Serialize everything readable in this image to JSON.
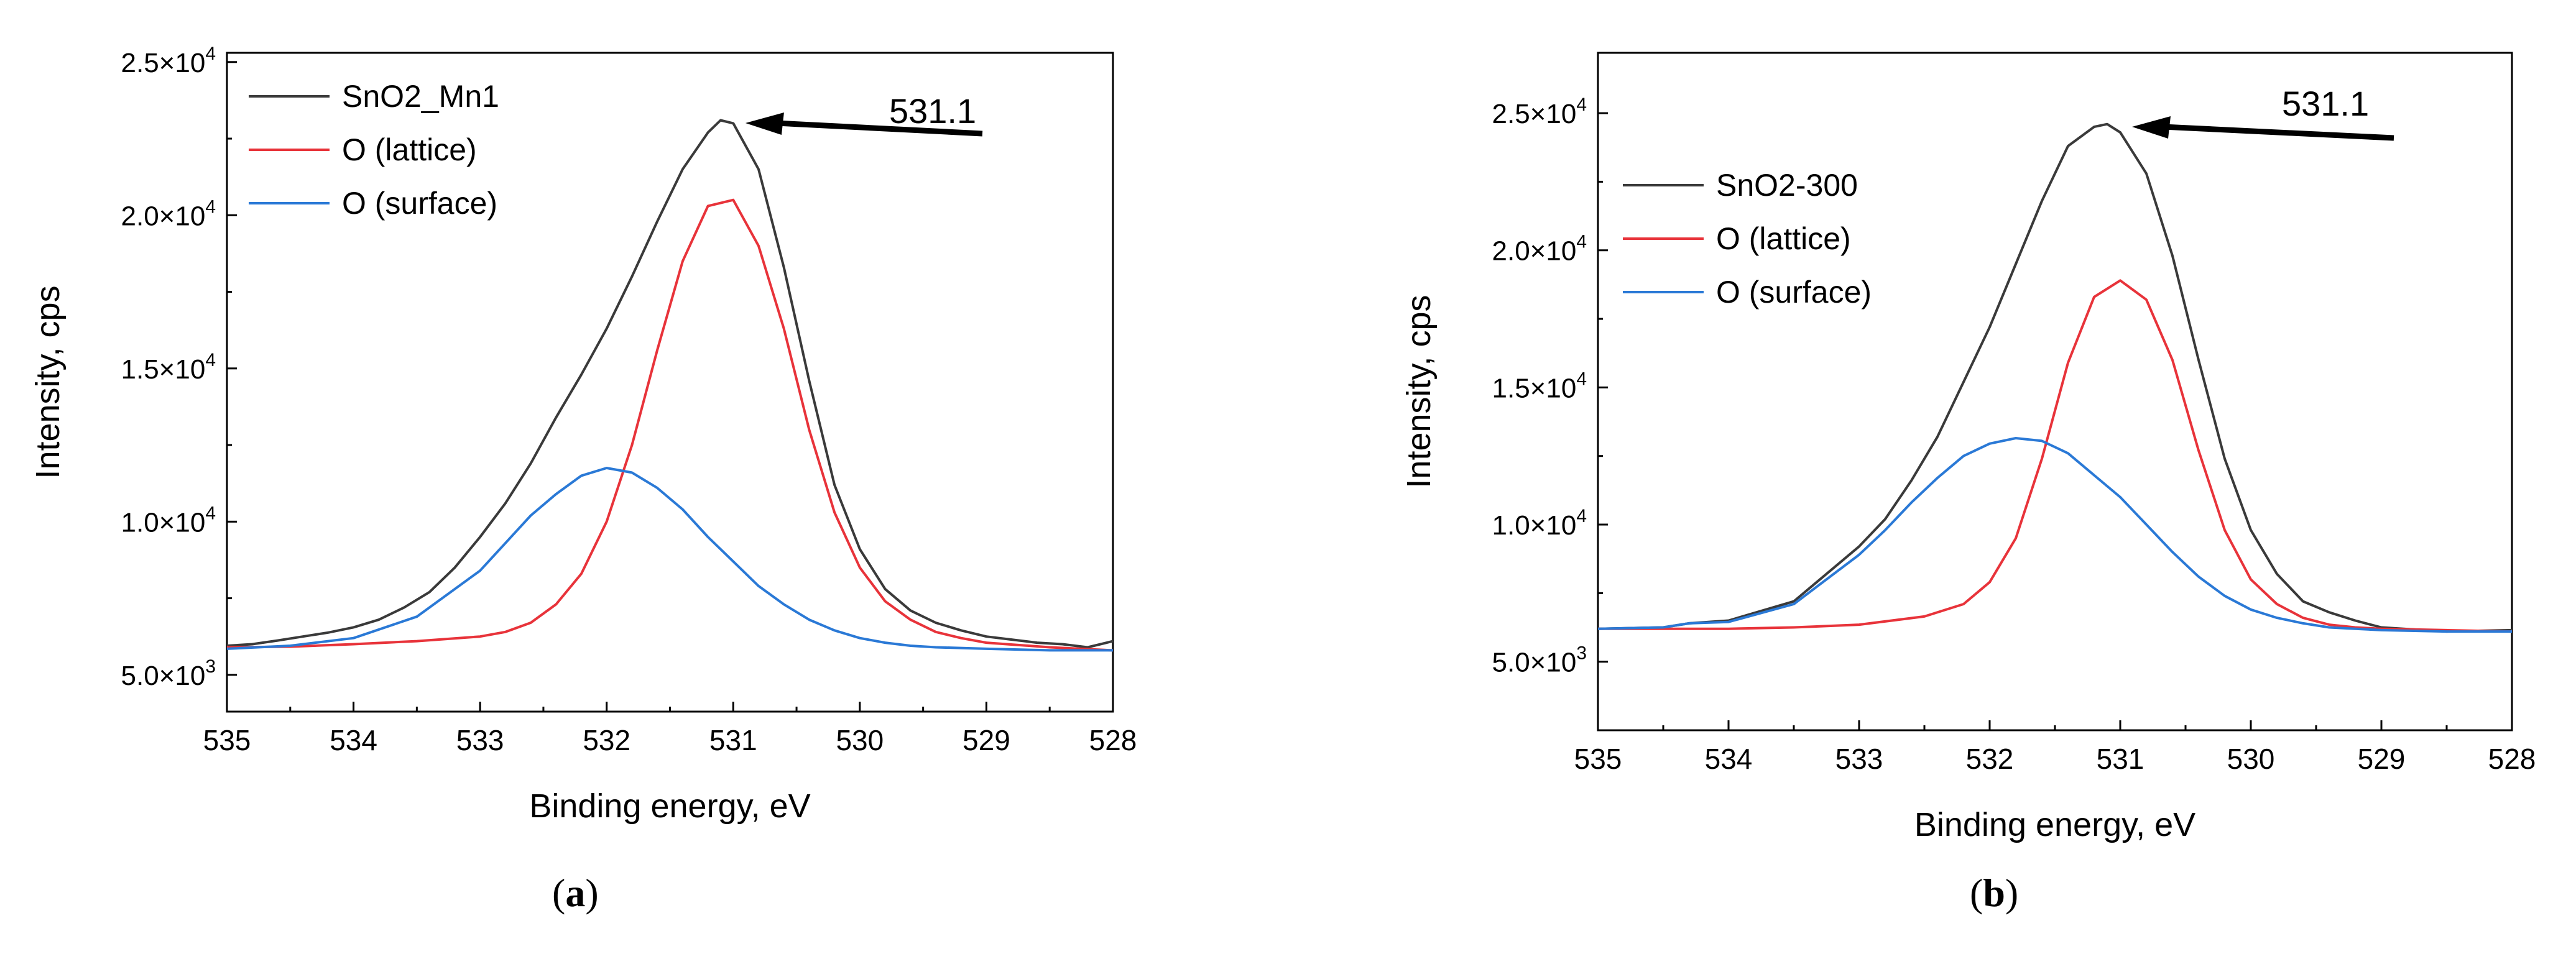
{
  "chart_data": [
    {
      "type": "line",
      "caption_letter": "a",
      "xlabel": "Binding energy, eV",
      "ylabel": "Intensity, cps",
      "xlim": [
        535,
        528
      ],
      "ylim": [
        3800,
        25300
      ],
      "x_ticks": [
        535,
        534,
        533,
        532,
        531,
        530,
        529,
        528
      ],
      "y_ticks": [
        {
          "value": 5000,
          "mantissa": "5.0×10",
          "exp": "3"
        },
        {
          "value": 10000,
          "mantissa": "1.0×10",
          "exp": "4"
        },
        {
          "value": 15000,
          "mantissa": "1.5×10",
          "exp": "4"
        },
        {
          "value": 20000,
          "mantissa": "2.0×10",
          "exp": "4"
        },
        {
          "value": 25000,
          "mantissa": "2.5×10",
          "exp": "4"
        }
      ],
      "annotation": {
        "text": "531.1",
        "x": 531.1,
        "y": 23100
      },
      "series": [
        {
          "name": "SnO2_Mn1",
          "color": "#3a3a3a",
          "x": [
            535.0,
            534.8,
            534.6,
            534.4,
            534.2,
            534.0,
            533.8,
            533.6,
            533.4,
            533.2,
            533.0,
            532.8,
            532.6,
            532.4,
            532.2,
            532.0,
            531.8,
            531.6,
            531.4,
            531.2,
            531.1,
            531.0,
            530.8,
            530.6,
            530.4,
            530.2,
            530.0,
            529.8,
            529.6,
            529.4,
            529.2,
            529.0,
            528.8,
            528.6,
            528.4,
            528.2,
            528.0
          ],
          "values": [
            5950,
            6000,
            6120,
            6250,
            6380,
            6550,
            6800,
            7200,
            7700,
            8500,
            9500,
            10600,
            11900,
            13400,
            14800,
            16300,
            18000,
            19800,
            21500,
            22700,
            23100,
            23000,
            21500,
            18300,
            14600,
            11200,
            9100,
            7800,
            7100,
            6700,
            6450,
            6250,
            6150,
            6050,
            6000,
            5900,
            6100
          ]
        },
        {
          "name": "O (lattice)",
          "color": "#e8333a",
          "x": [
            535.0,
            534.5,
            534.0,
            533.5,
            533.0,
            532.8,
            532.6,
            532.4,
            532.2,
            532.0,
            531.8,
            531.6,
            531.4,
            531.2,
            531.0,
            530.8,
            530.6,
            530.4,
            530.2,
            530.0,
            529.8,
            529.6,
            529.4,
            529.2,
            529.0,
            528.5,
            528.0
          ],
          "values": [
            5900,
            5920,
            6000,
            6100,
            6250,
            6400,
            6700,
            7300,
            8300,
            10000,
            12500,
            15600,
            18500,
            20300,
            20500,
            19000,
            16300,
            13000,
            10300,
            8500,
            7400,
            6800,
            6400,
            6200,
            6050,
            5900,
            5800
          ]
        },
        {
          "name": "O (surface)",
          "color": "#2a79d6",
          "x": [
            535.0,
            534.5,
            534.0,
            533.5,
            533.0,
            532.8,
            532.6,
            532.4,
            532.2,
            532.0,
            531.8,
            531.6,
            531.4,
            531.2,
            531.0,
            530.8,
            530.6,
            530.4,
            530.2,
            530.0,
            529.8,
            529.6,
            529.4,
            529.0,
            528.5,
            528.0
          ],
          "values": [
            5850,
            5950,
            6200,
            6900,
            8400,
            9300,
            10200,
            10900,
            11500,
            11750,
            11600,
            11100,
            10400,
            9500,
            8700,
            7900,
            7300,
            6800,
            6450,
            6200,
            6050,
            5950,
            5900,
            5850,
            5800,
            5800
          ]
        }
      ]
    },
    {
      "type": "line",
      "caption_letter": "b",
      "xlabel": "Binding energy, eV",
      "ylabel": "Intensity, cps",
      "xlim": [
        535,
        528
      ],
      "ylim": [
        2500,
        27200
      ],
      "x_ticks": [
        535,
        534,
        533,
        532,
        531,
        530,
        529,
        528
      ],
      "y_ticks": [
        {
          "value": 5000,
          "mantissa": "5.0×10",
          "exp": "3"
        },
        {
          "value": 10000,
          "mantissa": "1.0×10",
          "exp": "4"
        },
        {
          "value": 15000,
          "mantissa": "1.5×10",
          "exp": "4"
        },
        {
          "value": 20000,
          "mantissa": "2.0×10",
          "exp": "4"
        },
        {
          "value": 25000,
          "mantissa": "2.5×10",
          "exp": "4"
        }
      ],
      "annotation": {
        "text": "531.1",
        "x": 531.1,
        "y": 24600
      },
      "series": [
        {
          "name": "SnO2-300",
          "color": "#3a3a3a",
          "x": [
            535.0,
            534.5,
            534.3,
            534.0,
            533.5,
            533.0,
            532.8,
            532.6,
            532.4,
            532.2,
            532.0,
            531.8,
            531.6,
            531.4,
            531.2,
            531.1,
            531.0,
            530.8,
            530.6,
            530.4,
            530.2,
            530.0,
            529.8,
            529.6,
            529.4,
            529.2,
            529.0,
            528.5,
            528.0
          ],
          "values": [
            6200,
            6250,
            6400,
            6500,
            7200,
            9200,
            10200,
            11600,
            13200,
            15200,
            17200,
            19500,
            21800,
            23800,
            24500,
            24600,
            24300,
            22800,
            19800,
            16000,
            12400,
            9800,
            8200,
            7200,
            6800,
            6500,
            6250,
            6100,
            6150
          ]
        },
        {
          "name": "O (lattice)",
          "color": "#e8333a",
          "x": [
            535.0,
            534.5,
            534.0,
            533.5,
            533.0,
            532.5,
            532.2,
            532.0,
            531.8,
            531.6,
            531.4,
            531.2,
            531.0,
            530.8,
            530.6,
            530.4,
            530.2,
            530.0,
            529.8,
            529.6,
            529.4,
            529.2,
            529.0,
            528.5,
            528.0
          ],
          "values": [
            6200,
            6200,
            6200,
            6250,
            6350,
            6650,
            7100,
            7900,
            9500,
            12400,
            15900,
            18300,
            18900,
            18200,
            16000,
            12700,
            9800,
            8000,
            7100,
            6600,
            6350,
            6250,
            6200,
            6150,
            6100
          ]
        },
        {
          "name": "O (surface)",
          "color": "#2a79d6",
          "x": [
            535.0,
            534.5,
            534.3,
            534.0,
            533.5,
            533.0,
            532.8,
            532.6,
            532.4,
            532.2,
            532.0,
            531.8,
            531.6,
            531.4,
            531.2,
            531.0,
            530.8,
            530.6,
            530.4,
            530.2,
            530.0,
            529.8,
            529.6,
            529.4,
            529.2,
            529.0,
            528.5,
            528.0
          ],
          "values": [
            6200,
            6250,
            6400,
            6450,
            7100,
            8900,
            9800,
            10800,
            11700,
            12500,
            12950,
            13150,
            13050,
            12600,
            11800,
            11000,
            10000,
            9000,
            8100,
            7400,
            6900,
            6600,
            6400,
            6250,
            6200,
            6150,
            6100,
            6100
          ]
        }
      ]
    }
  ]
}
